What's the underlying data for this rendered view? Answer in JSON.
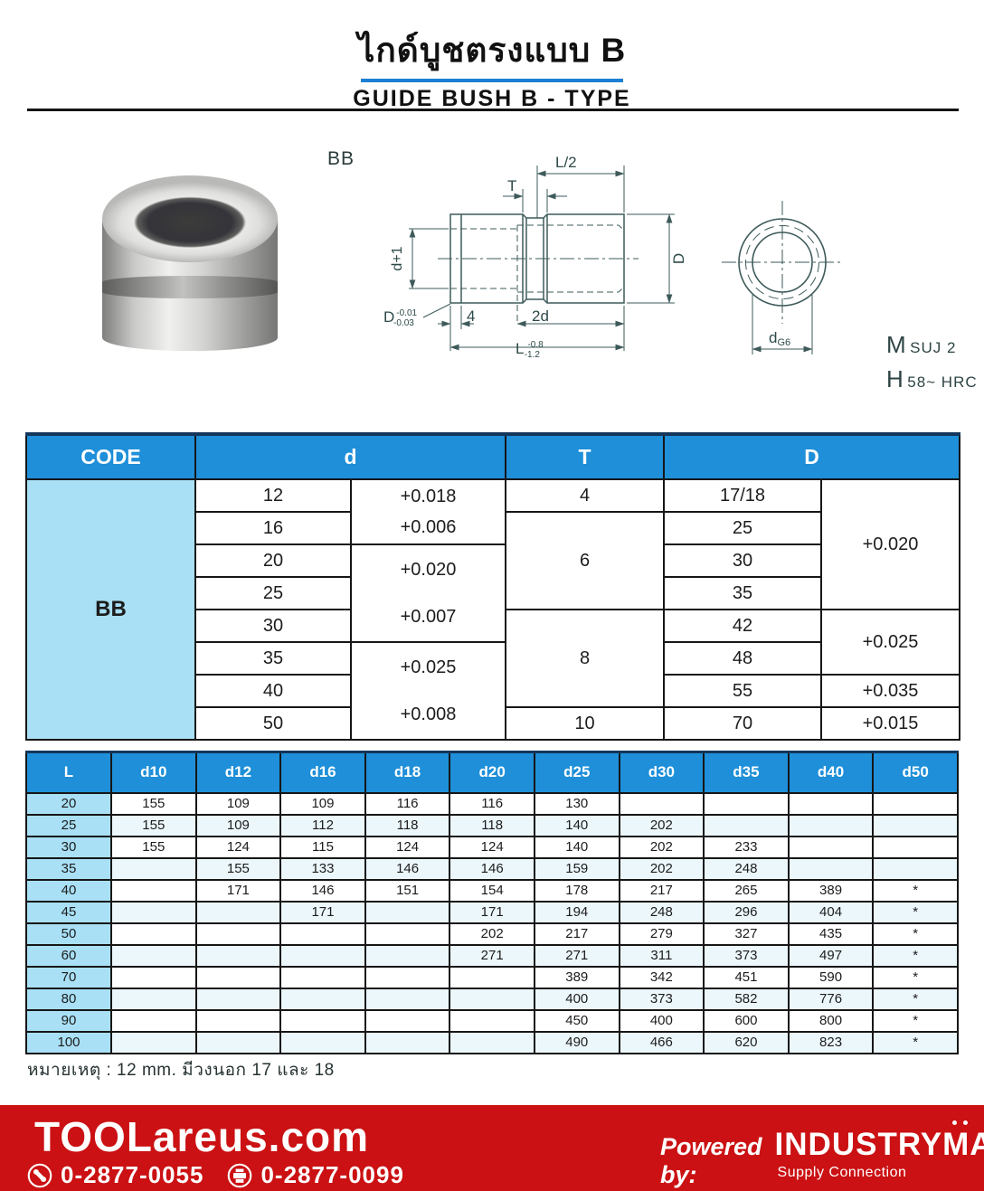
{
  "title": {
    "thai": "ไกด์บูชตรงแบบ B",
    "english": "GUIDE BUSH B - TYPE"
  },
  "figure": {
    "code_label": "BB",
    "material_prefix": "M",
    "material_value": "SUJ 2",
    "hardness_prefix": "H",
    "hardness_value": "58~ HRC",
    "dimensions": {
      "half_length": "L/2",
      "groove_width": "T",
      "bore": "d+1",
      "outer": "D",
      "outer_tol_label": "D",
      "outer_tol_top": "-0.01",
      "outer_tol_bottom": "-0.03",
      "chamfer": "4",
      "bore2": "2d",
      "length": "L",
      "length_tol_top": "-0.8",
      "length_tol_bottom": "-1.2",
      "front_dia": "d",
      "front_dia_fit": "G6"
    }
  },
  "spec_table": {
    "headers": {
      "code": "CODE",
      "d": "d",
      "t": "T",
      "big_d": "D"
    },
    "code_value": "BB",
    "d_values": [
      "12",
      "16",
      "20",
      "25",
      "30",
      "35",
      "40",
      "50"
    ],
    "d_tolerances": [
      {
        "top": "+0.018",
        "bottom": "+0.006"
      },
      {
        "top": "+0.020",
        "bottom": "+0.007"
      },
      {
        "top": "+0.025",
        "bottom": "+0.008"
      }
    ],
    "t_values": [
      "4",
      "6",
      "8",
      "10"
    ],
    "big_d_values": [
      "17/18",
      "25",
      "30",
      "35",
      "42",
      "48",
      "55",
      "70"
    ],
    "big_d_tolerances": [
      "+0.020",
      "+0.025",
      "+0.035",
      "+0.015"
    ]
  },
  "size_table": {
    "columns": [
      "L",
      "d10",
      "d12",
      "d16",
      "d18",
      "d20",
      "d25",
      "d30",
      "d35",
      "d40",
      "d50"
    ],
    "rows": [
      {
        "l": "20",
        "values": [
          "155",
          "109",
          "109",
          "116",
          "116",
          "130",
          "",
          "",
          "",
          ""
        ]
      },
      {
        "l": "25",
        "values": [
          "155",
          "109",
          "112",
          "118",
          "118",
          "140",
          "202",
          "",
          "",
          ""
        ]
      },
      {
        "l": "30",
        "values": [
          "155",
          "124",
          "115",
          "124",
          "124",
          "140",
          "202",
          "233",
          "",
          ""
        ]
      },
      {
        "l": "35",
        "values": [
          "",
          "155",
          "133",
          "146",
          "146",
          "159",
          "202",
          "248",
          "",
          ""
        ]
      },
      {
        "l": "40",
        "values": [
          "",
          "171",
          "146",
          "151",
          "154",
          "178",
          "217",
          "265",
          "389",
          "*"
        ]
      },
      {
        "l": "45",
        "values": [
          "",
          "",
          "171",
          "",
          "171",
          "194",
          "248",
          "296",
          "404",
          "*"
        ]
      },
      {
        "l": "50",
        "values": [
          "",
          "",
          "",
          "",
          "202",
          "217",
          "279",
          "327",
          "435",
          "*"
        ]
      },
      {
        "l": "60",
        "values": [
          "",
          "",
          "",
          "",
          "271",
          "271",
          "311",
          "373",
          "497",
          "*"
        ]
      },
      {
        "l": "70",
        "values": [
          "",
          "",
          "",
          "",
          "",
          "389",
          "342",
          "451",
          "590",
          "*"
        ]
      },
      {
        "l": "80",
        "values": [
          "",
          "",
          "",
          "",
          "",
          "400",
          "373",
          "582",
          "776",
          "*"
        ]
      },
      {
        "l": "90",
        "values": [
          "",
          "",
          "",
          "",
          "",
          "450",
          "400",
          "600",
          "800",
          "*"
        ]
      },
      {
        "l": "100",
        "values": [
          "",
          "",
          "",
          "",
          "",
          "490",
          "466",
          "620",
          "823",
          "*"
        ]
      }
    ]
  },
  "note": "หมายเหตุ : 12 mm. มีวงนอก 17 และ 18",
  "footer": {
    "brand": "TOOLareus.com",
    "phone": "0-2877-0055",
    "fax": "0-2877-0099",
    "powered_by": "Powered by:",
    "partner": "INDUSTRYMATE",
    "partner_subtitle": "Supply Connection"
  },
  "colors": {
    "table_header_blue": "#1E8FD8",
    "light_blue": "#A9E0F5",
    "footer_red": "#CB1113",
    "title_underline_blue": "#1B7FD4"
  }
}
